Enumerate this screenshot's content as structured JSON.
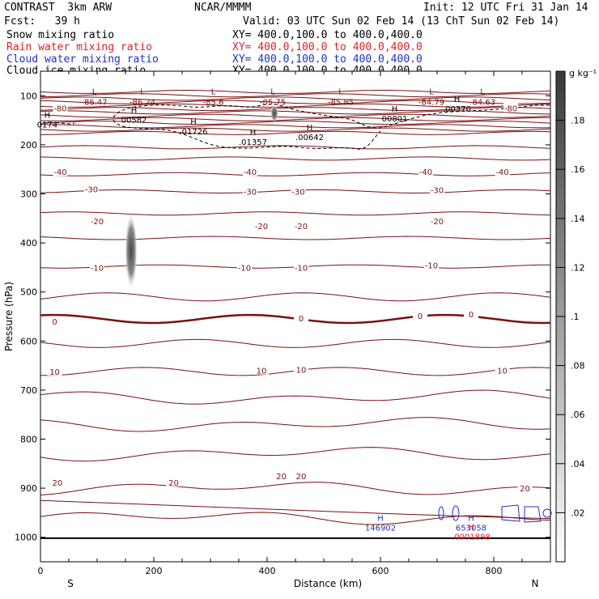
{
  "header": {
    "model": "CONTRAST  3km ARW",
    "org": "NCAR/MMMM",
    "init": "Init: 12 UTC Fri 31 Jan 14",
    "fcst": "Fcst:   39 h",
    "valid": "Valid: 03 UTC Sun 02 Feb 14 (13 ChT Sun 02 Feb 14)",
    "fields": [
      {
        "name": "Snow mixing ratio",
        "xy": "XY= 400.0,100.0 to 400.0,400.0",
        "color": "#000000"
      },
      {
        "name": "Rain water mixing ratio",
        "xy": "XY= 400.0,100.0 to 400.0,400.0",
        "color": "#e0202a"
      },
      {
        "name": "Cloud water mixing ratio",
        "xy": "XY= 400.0,100.0 to 400.0,400.0",
        "color": "#2030c8"
      },
      {
        "name": "Cloud ice mixing ratio",
        "xy": "XY= 400.0,100.0 to 400.0,400.0",
        "color": "#000000"
      }
    ]
  },
  "chart_data": {
    "type": "cross-section-contour",
    "xlabel": "Distance (km)",
    "ylabel": "Pressure (hPa)",
    "xlim": [
      0,
      900
    ],
    "ylim": [
      1050,
      50
    ],
    "xticks": [
      0,
      200,
      400,
      600,
      800
    ],
    "yticks": [
      100,
      200,
      300,
      400,
      500,
      600,
      700,
      800,
      900,
      1000
    ],
    "x_end_labels": {
      "left": "S",
      "right": "N"
    },
    "colorbar": {
      "unit": "g kg⁻¹",
      "ticks": [
        0.02,
        0.04,
        0.06,
        0.08,
        0.1,
        0.12,
        0.14,
        0.16,
        0.18
      ],
      "tick_labels": [
        ".02",
        ".04",
        ".06",
        ".08",
        ".1",
        ".12",
        ".14",
        ".16",
        ".18"
      ]
    },
    "temperature_labels": [
      {
        "text": "-80",
        "x": 35,
        "p": 125
      },
      {
        "text": "-80",
        "x": 830,
        "p": 125
      },
      {
        "text": "-40",
        "x": 35,
        "p": 255
      },
      {
        "text": "-40",
        "x": 370,
        "p": 255
      },
      {
        "text": "-40",
        "x": 680,
        "p": 255
      },
      {
        "text": "-40",
        "x": 815,
        "p": 255
      },
      {
        "text": "-30",
        "x": 90,
        "p": 290
      },
      {
        "text": "-30",
        "x": 370,
        "p": 295
      },
      {
        "text": "-30",
        "x": 455,
        "p": 295
      },
      {
        "text": "-30",
        "x": 700,
        "p": 292
      },
      {
        "text": "-20",
        "x": 100,
        "p": 355
      },
      {
        "text": "-20",
        "x": 390,
        "p": 365
      },
      {
        "text": "-20",
        "x": 460,
        "p": 365
      },
      {
        "text": "-20",
        "x": 700,
        "p": 355
      },
      {
        "text": "-10",
        "x": 100,
        "p": 450
      },
      {
        "text": "-10",
        "x": 360,
        "p": 450
      },
      {
        "text": "-10",
        "x": 460,
        "p": 450
      },
      {
        "text": "-10",
        "x": 690,
        "p": 445
      },
      {
        "text": "0",
        "x": 25,
        "p": 560
      },
      {
        "text": "0",
        "x": 460,
        "p": 553
      },
      {
        "text": "0",
        "x": 670,
        "p": 548
      },
      {
        "text": "0",
        "x": 760,
        "p": 545
      },
      {
        "text": "10",
        "x": 25,
        "p": 662
      },
      {
        "text": "10",
        "x": 390,
        "p": 660
      },
      {
        "text": "10",
        "x": 460,
        "p": 658
      },
      {
        "text": "10",
        "x": 815,
        "p": 660
      },
      {
        "text": "20",
        "x": 30,
        "p": 888
      },
      {
        "text": "20",
        "x": 235,
        "p": 888
      },
      {
        "text": "20",
        "x": 425,
        "p": 875
      },
      {
        "text": "20",
        "x": 460,
        "p": 875
      },
      {
        "text": "20",
        "x": 855,
        "p": 900
      }
    ],
    "lows": [
      {
        "value": "-86.47",
        "x": 95,
        "p": 100
      },
      {
        "value": "-86.24",
        "x": 180,
        "p": 100
      },
      {
        "value": "-85.6",
        "x": 305,
        "p": 100
      },
      {
        "value": "-85.75",
        "x": 410,
        "p": 100
      },
      {
        "value": "-85.85",
        "x": 530,
        "p": 100
      },
      {
        "value": "-84.79",
        "x": 690,
        "p": 100
      },
      {
        "value": "-84.63",
        "x": 780,
        "p": 100
      }
    ],
    "highs": [
      {
        "value": "00582",
        "x": 165,
        "p": 138,
        "color": "#000000"
      },
      {
        "value": ".01726",
        "x": 270,
        "p": 162,
        "color": "#000000"
      },
      {
        "value": ".01357",
        "x": 375,
        "p": 184,
        "color": "#000000"
      },
      {
        "value": ".00642",
        "x": 475,
        "p": 174,
        "color": "#000000"
      },
      {
        "value": "00801",
        "x": 625,
        "p": 136,
        "color": "#000000"
      },
      {
        "value": ".00370",
        "x": 735,
        "p": 116,
        "color": "#000000"
      },
      {
        "value": "0174",
        "x": 12,
        "p": 148,
        "color": "#000000"
      },
      {
        "value": "146902",
        "x": 600,
        "p": 970,
        "color": "#2030c8"
      },
      {
        "value": "653058",
        "x": 760,
        "p": 970,
        "color": "#2030c8"
      },
      {
        "value": ".0001898",
        "x": 760,
        "p": 988,
        "color": "#e0202a"
      }
    ]
  }
}
